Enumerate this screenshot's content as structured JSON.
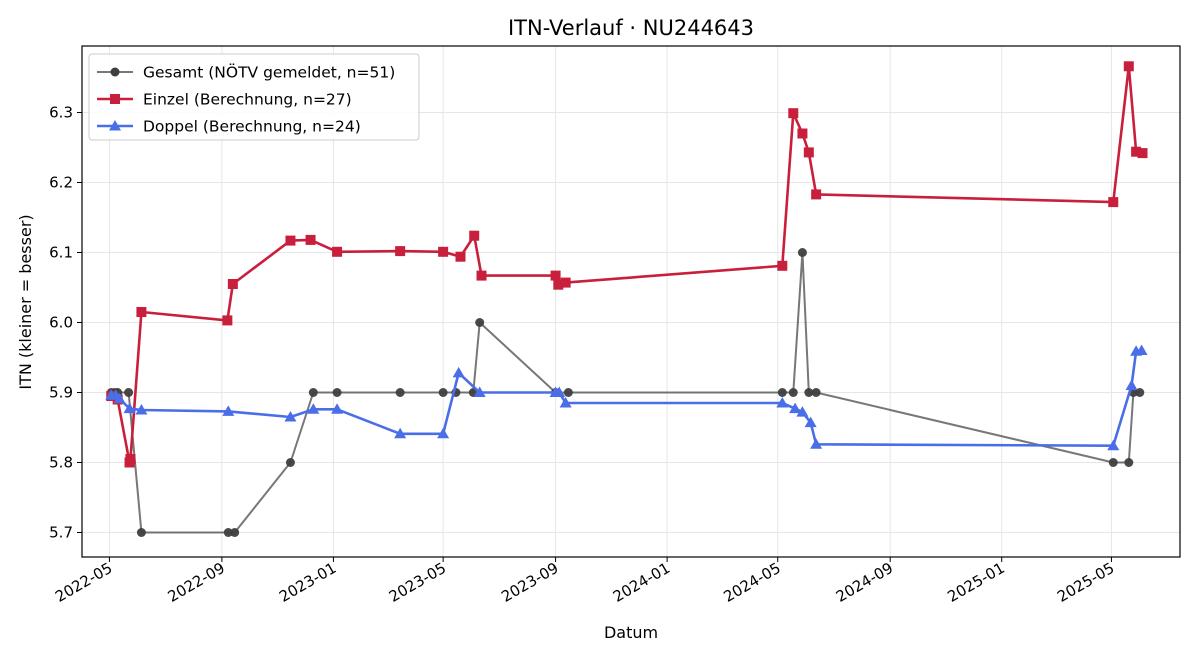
{
  "chart_data": {
    "type": "line",
    "title": "ITN-Verlauf · NU244643",
    "xlabel": "Datum",
    "ylabel": "ITN  (kleiner = besser)",
    "x_axis": "date",
    "xlim": [
      "2022-04-01",
      "2025-07-15"
    ],
    "ylim": [
      5.665,
      6.395
    ],
    "x_ticks": [
      "2022-05-01",
      "2022-09-01",
      "2023-01-01",
      "2023-05-01",
      "2023-09-01",
      "2024-01-01",
      "2024-05-01",
      "2024-09-01",
      "2025-01-01",
      "2025-05-01"
    ],
    "x_tick_labels": [
      "2022-05",
      "2022-09",
      "2023-01",
      "2023-05",
      "2023-09",
      "2024-01",
      "2024-05",
      "2024-09",
      "2025-01",
      "2025-05"
    ],
    "y_ticks": [
      5.7,
      5.8,
      5.9,
      6.0,
      6.1,
      6.2,
      6.3
    ],
    "y_tick_labels": [
      "5.7",
      "5.8",
      "5.9",
      "6.0",
      "6.1",
      "6.2",
      "6.3"
    ],
    "grid": true,
    "legend_position": "upper-left",
    "series": [
      {
        "name": "Gesamt (NÖTV gemeldet, n=51)",
        "color": "#555555",
        "marker": "circle",
        "x": [
          "2022-05-03",
          "2022-05-07",
          "2022-05-10",
          "2022-05-22",
          "2022-06-05",
          "2022-09-08",
          "2022-09-15",
          "2022-11-15",
          "2022-12-10",
          "2023-01-05",
          "2023-03-15",
          "2023-05-01",
          "2023-05-15",
          "2023-06-03",
          "2023-06-10",
          "2023-09-01",
          "2023-09-15",
          "2024-05-06",
          "2024-05-18",
          "2024-05-28",
          "2024-06-04",
          "2024-06-12",
          "2025-05-03",
          "2025-05-20",
          "2025-05-25",
          "2025-06-01"
        ],
        "y": [
          5.9,
          5.9,
          5.9,
          5.9,
          5.7,
          5.7,
          5.7,
          5.8,
          5.9,
          5.9,
          5.9,
          5.9,
          5.9,
          5.9,
          6.0,
          5.9,
          5.9,
          5.9,
          5.9,
          6.1,
          5.9,
          5.9,
          5.8,
          5.8,
          5.9,
          5.9
        ]
      },
      {
        "name": "Einzel (Berechnung, n=27)",
        "color": "#c8203c",
        "marker": "square",
        "x": [
          "2022-05-03",
          "2022-05-10",
          "2022-05-23",
          "2022-05-24",
          "2022-06-05",
          "2022-09-07",
          "2022-09-13",
          "2022-11-15",
          "2022-12-07",
          "2023-01-05",
          "2023-03-15",
          "2023-05-01",
          "2023-05-20",
          "2023-06-04",
          "2023-06-12",
          "2023-09-01",
          "2023-09-04",
          "2023-09-12",
          "2024-05-06",
          "2024-05-18",
          "2024-05-28",
          "2024-06-04",
          "2024-06-12",
          "2025-05-03",
          "2025-05-20",
          "2025-05-28",
          "2025-06-04"
        ],
        "y": [
          5.895,
          5.89,
          5.8,
          5.805,
          6.015,
          6.003,
          6.055,
          6.117,
          6.118,
          6.101,
          6.102,
          6.101,
          6.094,
          6.124,
          6.067,
          6.067,
          6.054,
          6.057,
          6.081,
          6.299,
          6.27,
          6.243,
          6.183,
          6.172,
          6.366,
          6.244,
          6.242
        ]
      },
      {
        "name": "Doppel (Berechnung, n=24)",
        "color": "#4a6ee8",
        "marker": "triangle",
        "x": [
          "2022-05-03",
          "2022-05-08",
          "2022-05-12",
          "2022-05-23",
          "2022-06-05",
          "2022-09-08",
          "2022-11-15",
          "2022-12-10",
          "2023-01-05",
          "2023-03-15",
          "2023-05-01",
          "2023-05-18",
          "2023-06-10",
          "2023-09-01",
          "2023-09-05",
          "2023-09-12",
          "2024-05-06",
          "2024-05-20",
          "2024-05-28",
          "2024-06-06",
          "2024-06-12",
          "2025-05-03",
          "2025-05-23",
          "2025-05-28",
          "2025-06-03"
        ],
        "y": [
          5.896,
          5.896,
          5.891,
          5.877,
          5.875,
          5.873,
          5.865,
          5.876,
          5.876,
          5.841,
          5.841,
          5.928,
          5.9,
          5.9,
          5.9,
          5.885,
          5.885,
          5.877,
          5.872,
          5.857,
          5.826,
          5.824,
          5.91,
          5.959,
          5.96
        ]
      }
    ]
  }
}
